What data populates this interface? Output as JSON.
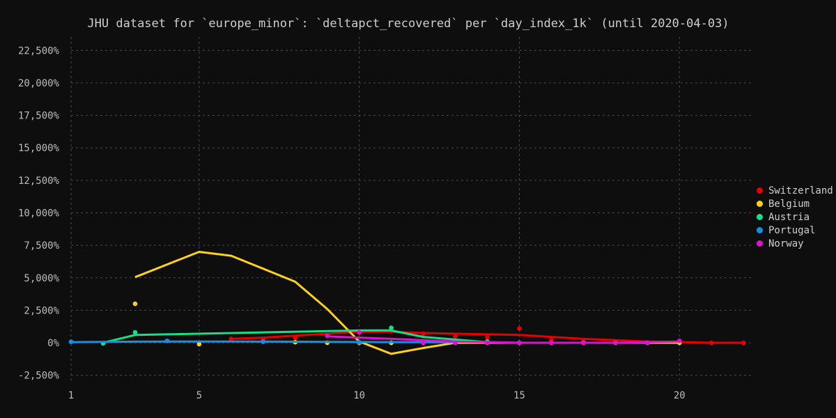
{
  "chart_data": {
    "type": "line",
    "title": "JHU dataset for `europe_minor`: `deltapct_recovered` per `day_index_1k` (until 2020-04-03)",
    "xlabel": "",
    "ylabel": "",
    "xlim": [
      1,
      22.3
    ],
    "ylim": [
      -3000,
      23000
    ],
    "x_ticks": [
      1,
      5,
      10,
      15,
      20
    ],
    "y_ticks": [
      -2500,
      0,
      2500,
      5000,
      7500,
      10000,
      12500,
      15000,
      17500,
      20000,
      22500
    ],
    "y_tick_labels": [
      "-2,500%",
      "0%",
      "2,500%",
      "5,000%",
      "7,500%",
      "10,000%",
      "12,500%",
      "15,000%",
      "17,500%",
      "20,000%",
      "22,500%"
    ],
    "grid": true,
    "legend_position": "right",
    "series": [
      {
        "name": "Switzerland",
        "color": "#e60000",
        "points": [
          [
            6,
            300
          ],
          [
            7,
            250
          ],
          [
            8,
            400
          ],
          [
            9,
            600
          ],
          [
            10,
            800
          ],
          [
            11,
            900
          ],
          [
            12,
            700
          ],
          [
            13,
            500
          ],
          [
            14,
            400
          ],
          [
            15,
            1100
          ],
          [
            16,
            200
          ],
          [
            17,
            100
          ],
          [
            18,
            50
          ],
          [
            19,
            0
          ],
          [
            20,
            0
          ],
          [
            21,
            0
          ],
          [
            22,
            0
          ]
        ],
        "line": [
          [
            6,
            300
          ],
          [
            7,
            400
          ],
          [
            8,
            550
          ],
          [
            9,
            700
          ],
          [
            10,
            850
          ],
          [
            11,
            850
          ],
          [
            12,
            750
          ],
          [
            13,
            700
          ],
          [
            14,
            650
          ],
          [
            15,
            600
          ],
          [
            16,
            450
          ],
          [
            17,
            300
          ],
          [
            18,
            200
          ],
          [
            19,
            100
          ],
          [
            20,
            50
          ],
          [
            21,
            0
          ],
          [
            22,
            0
          ]
        ]
      },
      {
        "name": "Belgium",
        "color": "#ffd21a",
        "points": [
          [
            3,
            3000
          ],
          [
            5,
            -100
          ],
          [
            8,
            50
          ],
          [
            9,
            0
          ],
          [
            10,
            0
          ],
          [
            11,
            0
          ],
          [
            12,
            0
          ],
          [
            13,
            0
          ],
          [
            14,
            0
          ],
          [
            15,
            0
          ],
          [
            16,
            0
          ],
          [
            17,
            0
          ],
          [
            18,
            0
          ],
          [
            19,
            0
          ],
          [
            20,
            0
          ]
        ],
        "line": [
          [
            3,
            5050
          ],
          [
            5,
            7000
          ],
          [
            6,
            6700
          ],
          [
            7,
            5700
          ],
          [
            8,
            4700
          ],
          [
            9,
            2600
          ],
          [
            10,
            100
          ],
          [
            11,
            -850
          ],
          [
            12,
            -400
          ],
          [
            13,
            0
          ],
          [
            14,
            0
          ],
          [
            15,
            0
          ],
          [
            16,
            0
          ],
          [
            17,
            0
          ],
          [
            18,
            0
          ],
          [
            19,
            0
          ],
          [
            20,
            0
          ]
        ]
      },
      {
        "name": "Austria",
        "color": "#16e087",
        "points": [
          [
            2,
            -50
          ],
          [
            3,
            800
          ],
          [
            11,
            1150
          ],
          [
            12,
            50
          ],
          [
            13,
            0
          ],
          [
            14,
            100
          ],
          [
            15,
            0
          ],
          [
            16,
            0
          ],
          [
            17,
            0
          ],
          [
            18,
            0
          ],
          [
            19,
            0
          ]
        ],
        "line": [
          [
            2,
            0
          ],
          [
            3,
            600
          ],
          [
            5,
            700
          ],
          [
            7,
            800
          ],
          [
            9,
            900
          ],
          [
            10,
            950
          ],
          [
            11,
            950
          ],
          [
            12,
            450
          ],
          [
            13,
            250
          ],
          [
            14,
            50
          ],
          [
            15,
            0
          ],
          [
            16,
            0
          ],
          [
            17,
            0
          ],
          [
            18,
            0
          ],
          [
            19,
            0
          ]
        ]
      },
      {
        "name": "Portugal",
        "color": "#1590ea",
        "points": [
          [
            1,
            80
          ],
          [
            4,
            150
          ],
          [
            7,
            80
          ],
          [
            10,
            50
          ]
        ],
        "line": [
          [
            1,
            50
          ],
          [
            2,
            70
          ],
          [
            3,
            90
          ],
          [
            4,
            100
          ],
          [
            5,
            100
          ],
          [
            6,
            100
          ],
          [
            7,
            90
          ],
          [
            8,
            80
          ],
          [
            9,
            70
          ],
          [
            10,
            60
          ],
          [
            11,
            50
          ],
          [
            12,
            50
          ],
          [
            13,
            40
          ]
        ]
      },
      {
        "name": "Norway",
        "color": "#e010d0",
        "points": [
          [
            9,
            550
          ],
          [
            10,
            800
          ],
          [
            12,
            0
          ],
          [
            13,
            0
          ],
          [
            14,
            0
          ],
          [
            15,
            0
          ],
          [
            16,
            0
          ],
          [
            17,
            0
          ],
          [
            18,
            0
          ],
          [
            19,
            0
          ],
          [
            20,
            150
          ]
        ],
        "line": [
          [
            9,
            500
          ],
          [
            10,
            400
          ],
          [
            11,
            300
          ],
          [
            12,
            200
          ],
          [
            13,
            100
          ],
          [
            14,
            50
          ],
          [
            15,
            0
          ],
          [
            16,
            0
          ],
          [
            17,
            0
          ],
          [
            18,
            0
          ],
          [
            19,
            50
          ],
          [
            20,
            100
          ]
        ]
      }
    ]
  }
}
